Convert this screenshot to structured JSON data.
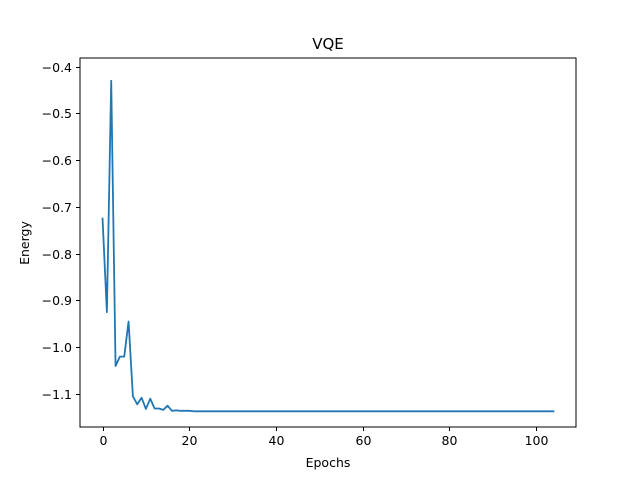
{
  "chart_data": {
    "type": "line",
    "title": "VQE",
    "xlabel": "Epochs",
    "ylabel": "Energy",
    "xlim": [
      -5.2,
      109.2
    ],
    "ylim": [
      -1.1706,
      -0.3814
    ],
    "xticks": [
      0,
      20,
      40,
      60,
      80,
      100
    ],
    "xtick_labels": [
      "0",
      "20",
      "40",
      "60",
      "80",
      "100"
    ],
    "yticks": [
      -1.1,
      -1.0,
      -0.9,
      -0.8,
      -0.7,
      -0.6,
      -0.5,
      -0.4
    ],
    "ytick_labels": [
      "−1.1",
      "−1.0",
      "−0.9",
      "−0.8",
      "−0.7",
      "−0.6",
      "−0.5",
      "−0.4"
    ],
    "grid": false,
    "series": [
      {
        "color": "#1f77b4",
        "x": [
          0,
          1,
          2,
          3,
          4,
          5,
          6,
          7,
          8,
          9,
          10,
          11,
          12,
          13,
          14,
          15,
          16,
          17,
          18,
          19,
          20,
          21,
          22,
          23,
          24,
          25,
          30,
          40,
          50,
          60,
          70,
          80,
          90,
          100,
          104
        ],
        "y": [
          -0.725,
          -0.925,
          -0.43,
          -1.04,
          -1.02,
          -1.02,
          -0.945,
          -1.105,
          -1.122,
          -1.108,
          -1.132,
          -1.11,
          -1.131,
          -1.131,
          -1.134,
          -1.125,
          -1.136,
          -1.135,
          -1.136,
          -1.136,
          -1.136,
          -1.137,
          -1.137,
          -1.137,
          -1.137,
          -1.137,
          -1.137,
          -1.137,
          -1.137,
          -1.137,
          -1.137,
          -1.137,
          -1.137,
          -1.137,
          -1.137
        ]
      }
    ]
  }
}
